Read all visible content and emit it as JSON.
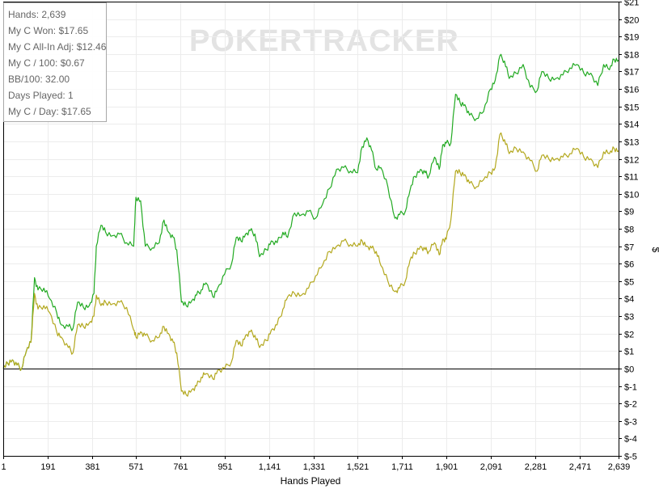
{
  "watermark": {
    "left": "POKER",
    "right": "TRACKER"
  },
  "stats": [
    "Hands: 2,639",
    "My C Won: $17.65",
    "My C All-In Adj: $12.46",
    "My C / 100: $0.67",
    "BB/100: 32.00",
    "Days Played: 1",
    "My C / Day: $17.65"
  ],
  "chart_data": {
    "type": "line",
    "xlabel": "Hands Played",
    "ylabel": "$",
    "xlim": [
      1,
      2639
    ],
    "ylim": [
      -5,
      21
    ],
    "x_ticks": [
      1,
      191,
      381,
      571,
      761,
      951,
      1141,
      1331,
      1521,
      1711,
      1901,
      2091,
      2281,
      2471,
      2639
    ],
    "x_tick_labels": [
      "1",
      "191",
      "381",
      "571",
      "761",
      "951",
      "1,141",
      "1,331",
      "1,521",
      "1,711",
      "1,901",
      "2,091",
      "2,281",
      "2,471",
      "2,639"
    ],
    "y_ticks": [
      -5,
      -4,
      -3,
      -2,
      -1,
      0,
      1,
      2,
      3,
      4,
      5,
      6,
      7,
      8,
      9,
      10,
      11,
      12,
      13,
      14,
      15,
      16,
      17,
      18,
      19,
      20,
      21
    ],
    "y_tick_labels": [
      "$-5",
      "$-4",
      "$-3",
      "$-2",
      "$-1",
      "$0",
      "$1",
      "$2",
      "$3",
      "$4",
      "$5",
      "$6",
      "$7",
      "$8",
      "$9",
      "$10",
      "$11",
      "$12",
      "$13",
      "$14",
      "$15",
      "$16",
      "$17",
      "$18",
      "$19",
      "$20",
      "$21"
    ],
    "zero_line": true,
    "colors": {
      "won": "#22aa22",
      "allin": "#b3a81e",
      "grid": "#ececec",
      "zero": "#000000"
    },
    "series": [
      {
        "key": "won",
        "points": [
          [
            1,
            0
          ],
          [
            20,
            0.3
          ],
          [
            40,
            0.5
          ],
          [
            60,
            0.2
          ],
          [
            80,
            0
          ],
          [
            100,
            1
          ],
          [
            120,
            1.5
          ],
          [
            135,
            5.2
          ],
          [
            150,
            4.5
          ],
          [
            175,
            4.6
          ],
          [
            200,
            4.0
          ],
          [
            230,
            3.2
          ],
          [
            250,
            2.5
          ],
          [
            280,
            2.4
          ],
          [
            300,
            2.3
          ],
          [
            320,
            3.8
          ],
          [
            345,
            3.5
          ],
          [
            370,
            3.6
          ],
          [
            390,
            4.3
          ],
          [
            400,
            7.0
          ],
          [
            420,
            8.2
          ],
          [
            440,
            7.8
          ],
          [
            470,
            7.6
          ],
          [
            500,
            7.7
          ],
          [
            530,
            7.2
          ],
          [
            560,
            7.0
          ],
          [
            570,
            9.8
          ],
          [
            590,
            9.6
          ],
          [
            610,
            7.0
          ],
          [
            640,
            6.9
          ],
          [
            670,
            7.2
          ],
          [
            690,
            8.5
          ],
          [
            710,
            7.8
          ],
          [
            730,
            7.5
          ],
          [
            745,
            6.8
          ],
          [
            765,
            3.8
          ],
          [
            785,
            3.6
          ],
          [
            810,
            3.9
          ],
          [
            830,
            4.2
          ],
          [
            850,
            4.5
          ],
          [
            870,
            4.9
          ],
          [
            900,
            4.1
          ],
          [
            920,
            4.6
          ],
          [
            950,
            5.4
          ],
          [
            980,
            6.0
          ],
          [
            1000,
            7.5
          ],
          [
            1020,
            7.3
          ],
          [
            1040,
            7.7
          ],
          [
            1060,
            7.9
          ],
          [
            1080,
            7.7
          ],
          [
            1100,
            6.4
          ],
          [
            1130,
            6.8
          ],
          [
            1150,
            7.3
          ],
          [
            1175,
            7.2
          ],
          [
            1200,
            7.8
          ],
          [
            1220,
            7.5
          ],
          [
            1250,
            8.9
          ],
          [
            1280,
            8.8
          ],
          [
            1310,
            9.0
          ],
          [
            1340,
            8.6
          ],
          [
            1370,
            9.4
          ],
          [
            1400,
            10.3
          ],
          [
            1430,
            11.4
          ],
          [
            1460,
            11.5
          ],
          [
            1490,
            11.3
          ],
          [
            1520,
            11.2
          ],
          [
            1540,
            12.7
          ],
          [
            1560,
            13.2
          ],
          [
            1580,
            12.5
          ],
          [
            1600,
            11.4
          ],
          [
            1620,
            11.5
          ],
          [
            1650,
            10.4
          ],
          [
            1680,
            8.6
          ],
          [
            1700,
            8.8
          ],
          [
            1725,
            9.0
          ],
          [
            1745,
            10.2
          ],
          [
            1765,
            11.0
          ],
          [
            1790,
            11.4
          ],
          [
            1810,
            11.2
          ],
          [
            1825,
            11.0
          ],
          [
            1850,
            12.1
          ],
          [
            1870,
            11.4
          ],
          [
            1885,
            12.8
          ],
          [
            1900,
            12.9
          ],
          [
            1920,
            12.9
          ],
          [
            1940,
            15.7
          ],
          [
            1960,
            15.2
          ],
          [
            1980,
            15.1
          ],
          [
            2000,
            14.5
          ],
          [
            2030,
            14.3
          ],
          [
            2060,
            14.7
          ],
          [
            2090,
            16.0
          ],
          [
            2110,
            16.5
          ],
          [
            2130,
            17.9
          ],
          [
            2150,
            17.6
          ],
          [
            2170,
            16.6
          ],
          [
            2200,
            16.9
          ],
          [
            2230,
            17.4
          ],
          [
            2260,
            16.1
          ],
          [
            2290,
            15.9
          ],
          [
            2310,
            17.0
          ],
          [
            2340,
            16.6
          ],
          [
            2370,
            16.6
          ],
          [
            2400,
            16.8
          ],
          [
            2430,
            17.2
          ],
          [
            2460,
            17.4
          ],
          [
            2490,
            16.9
          ],
          [
            2520,
            16.9
          ],
          [
            2550,
            16.2
          ],
          [
            2575,
            17.4
          ],
          [
            2600,
            17.1
          ],
          [
            2620,
            17.7
          ],
          [
            2639,
            17.65
          ]
        ]
      },
      {
        "key": "allin",
        "points": [
          [
            1,
            0
          ],
          [
            20,
            0.3
          ],
          [
            40,
            0.5
          ],
          [
            60,
            0.2
          ],
          [
            80,
            0
          ],
          [
            100,
            1
          ],
          [
            120,
            1.5
          ],
          [
            135,
            4.3
          ],
          [
            150,
            3.4
          ],
          [
            175,
            3.6
          ],
          [
            200,
            3.2
          ],
          [
            230,
            2.1
          ],
          [
            250,
            1.8
          ],
          [
            280,
            1.2
          ],
          [
            300,
            0.9
          ],
          [
            320,
            2.5
          ],
          [
            345,
            2.4
          ],
          [
            370,
            2.6
          ],
          [
            390,
            3.0
          ],
          [
            400,
            4.2
          ],
          [
            420,
            3.6
          ],
          [
            440,
            3.8
          ],
          [
            470,
            3.7
          ],
          [
            500,
            3.8
          ],
          [
            530,
            3.5
          ],
          [
            560,
            2.2
          ],
          [
            570,
            1.8
          ],
          [
            590,
            2.1
          ],
          [
            610,
            1.9
          ],
          [
            640,
            1.6
          ],
          [
            670,
            1.8
          ],
          [
            690,
            2.4
          ],
          [
            710,
            2.0
          ],
          [
            730,
            1.5
          ],
          [
            745,
            0.9
          ],
          [
            765,
            -1.3
          ],
          [
            785,
            -1.5
          ],
          [
            810,
            -1.2
          ],
          [
            830,
            -1.0
          ],
          [
            850,
            -0.5
          ],
          [
            870,
            -0.3
          ],
          [
            900,
            -0.6
          ],
          [
            920,
            -0.1
          ],
          [
            950,
            0
          ],
          [
            980,
            0.4
          ],
          [
            1000,
            1.6
          ],
          [
            1020,
            1.3
          ],
          [
            1040,
            1.9
          ],
          [
            1060,
            2.1
          ],
          [
            1080,
            1.9
          ],
          [
            1100,
            1.2
          ],
          [
            1130,
            1.6
          ],
          [
            1150,
            2.2
          ],
          [
            1175,
            2.5
          ],
          [
            1200,
            3.4
          ],
          [
            1220,
            4.1
          ],
          [
            1250,
            4.3
          ],
          [
            1280,
            4.2
          ],
          [
            1310,
            4.6
          ],
          [
            1340,
            5.3
          ],
          [
            1370,
            5.9
          ],
          [
            1400,
            6.7
          ],
          [
            1430,
            7.0
          ],
          [
            1460,
            7.3
          ],
          [
            1490,
            7.1
          ],
          [
            1520,
            7.0
          ],
          [
            1540,
            7.3
          ],
          [
            1560,
            7.0
          ],
          [
            1580,
            6.9
          ],
          [
            1600,
            6.7
          ],
          [
            1620,
            5.9
          ],
          [
            1650,
            5.0
          ],
          [
            1680,
            4.4
          ],
          [
            1700,
            4.6
          ],
          [
            1725,
            5.0
          ],
          [
            1745,
            6.2
          ],
          [
            1765,
            6.6
          ],
          [
            1790,
            7.0
          ],
          [
            1810,
            6.8
          ],
          [
            1825,
            6.7
          ],
          [
            1850,
            7.2
          ],
          [
            1870,
            6.5
          ],
          [
            1885,
            7.4
          ],
          [
            1900,
            7.4
          ],
          [
            1920,
            8.5
          ],
          [
            1940,
            11.3
          ],
          [
            1960,
            11.2
          ],
          [
            1980,
            11.1
          ],
          [
            2000,
            10.6
          ],
          [
            2030,
            10.4
          ],
          [
            2060,
            10.8
          ],
          [
            2090,
            11.2
          ],
          [
            2110,
            11.5
          ],
          [
            2130,
            13.4
          ],
          [
            2150,
            13.1
          ],
          [
            2170,
            12.3
          ],
          [
            2200,
            12.6
          ],
          [
            2230,
            12.4
          ],
          [
            2260,
            11.9
          ],
          [
            2290,
            11.3
          ],
          [
            2310,
            12.2
          ],
          [
            2340,
            12.0
          ],
          [
            2370,
            12.0
          ],
          [
            2400,
            12.1
          ],
          [
            2430,
            12.3
          ],
          [
            2460,
            12.6
          ],
          [
            2490,
            12.1
          ],
          [
            2520,
            12.0
          ],
          [
            2550,
            11.5
          ],
          [
            2575,
            12.4
          ],
          [
            2600,
            12.3
          ],
          [
            2620,
            12.6
          ],
          [
            2639,
            12.46
          ]
        ]
      }
    ]
  }
}
